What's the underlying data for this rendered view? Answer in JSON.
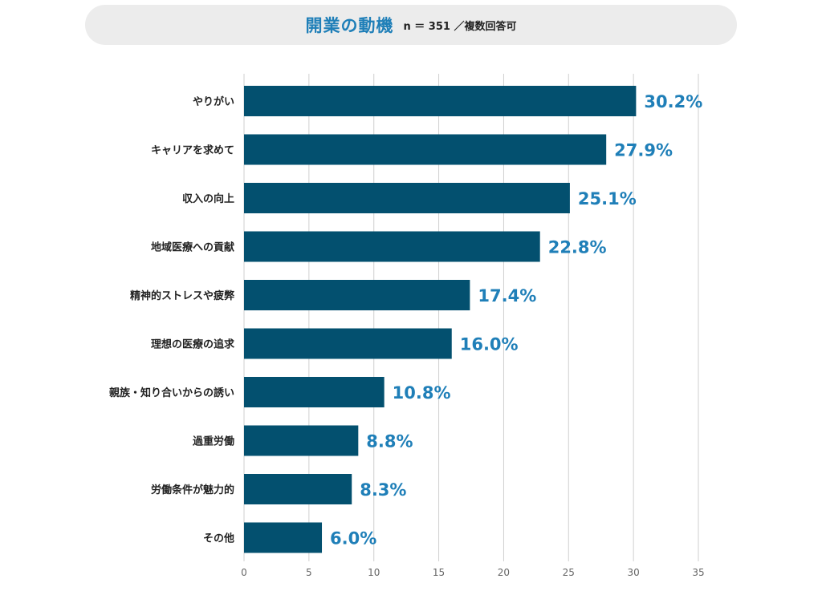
{
  "header": {
    "title": "開業の動機",
    "subtitle": "n ＝ 351 ／複数回答可"
  },
  "colors": {
    "bar": "#03506f",
    "value_label": "#1f7fb8",
    "grid": "#cfcfcf",
    "title_bg": "#ececec"
  },
  "chart_data": {
    "type": "bar",
    "orientation": "horizontal",
    "title": "開業の動機",
    "subtitle": "n ＝ 351 ／複数回答可",
    "categories": [
      "やりがい",
      "キャリアを求めて",
      "収入の向上",
      "地域医療への貢献",
      "精神的ストレスや疲弊",
      "理想の医療の追求",
      "親族・知り合いからの誘い",
      "過重労働",
      "労働条件が魅力的",
      "その他"
    ],
    "values": [
      30.2,
      27.9,
      25.1,
      22.8,
      17.4,
      16.0,
      10.8,
      8.8,
      8.3,
      6.0
    ],
    "value_labels": [
      "30.2%",
      "27.9%",
      "25.1%",
      "22.8%",
      "17.4%",
      "16.0%",
      "10.8%",
      "8.8%",
      "8.3%",
      "6.0%"
    ],
    "xlim": [
      0,
      35
    ],
    "xticks": [
      0,
      5,
      10,
      15,
      20,
      25,
      30,
      35
    ],
    "xlabel": "",
    "ylabel": "",
    "grid": "vertical"
  }
}
